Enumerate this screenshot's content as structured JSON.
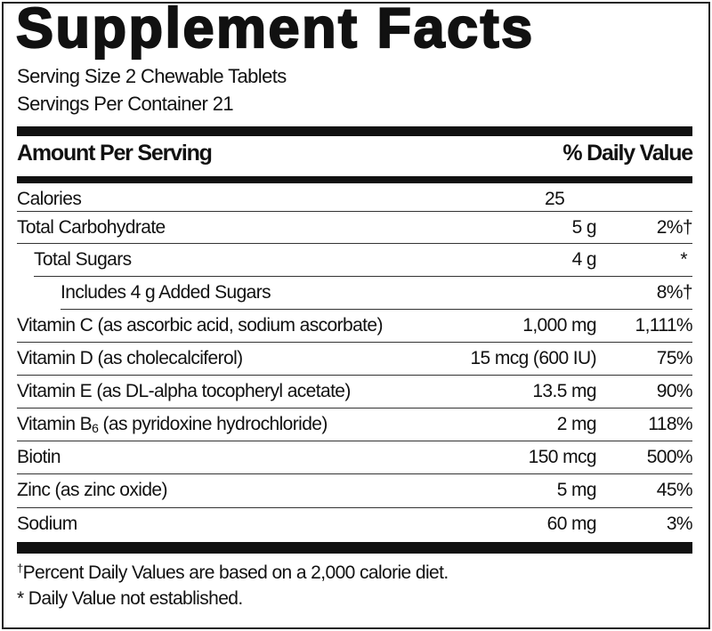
{
  "title": "Supplement Facts",
  "serving_size": "Serving Size 2 Chewable Tablets",
  "servings_per_container": "Servings Per Container 21",
  "header": {
    "amount": "Amount Per Serving",
    "dv": "% Daily Value"
  },
  "rows": [
    {
      "name": "Calories",
      "amount": "25",
      "dv": ""
    },
    {
      "name": "Total Carbohydrate",
      "amount": "5 g",
      "dv": "2%†"
    },
    {
      "name": "Total Sugars",
      "amount": "4 g",
      "dv": "*"
    },
    {
      "name": "Includes 4 g Added Sugars",
      "amount": "",
      "dv": "8%†"
    },
    {
      "name": "Vitamin C (as ascorbic acid, sodium ascorbate)",
      "amount": "1,000 mg",
      "dv": "1,111%"
    },
    {
      "name": "Vitamin D (as cholecalciferol)",
      "amount": "15 mcg (600 IU)",
      "dv": "75%"
    },
    {
      "name": "Vitamin E (as DL-alpha tocopheryl acetate)",
      "amount": "13.5 mg",
      "dv": "90%"
    },
    {
      "name_prefix": "Vitamin B",
      "name_sub": "6",
      "name_suffix": " (as pyridoxine hydrochloride)",
      "amount": "2 mg",
      "dv": "118%"
    },
    {
      "name": "Biotin",
      "amount": "150 mcg",
      "dv": "500%"
    },
    {
      "name": "Zinc (as zinc oxide)",
      "amount": "5 mg",
      "dv": "45%"
    },
    {
      "name": "Sodium",
      "amount": "60 mg",
      "dv": "3%"
    }
  ],
  "footnotes": {
    "dagger_mark": "†",
    "dagger": "Percent Daily Values are based on a 2,000 calorie diet.",
    "asterisk": "* Daily Value not established."
  }
}
